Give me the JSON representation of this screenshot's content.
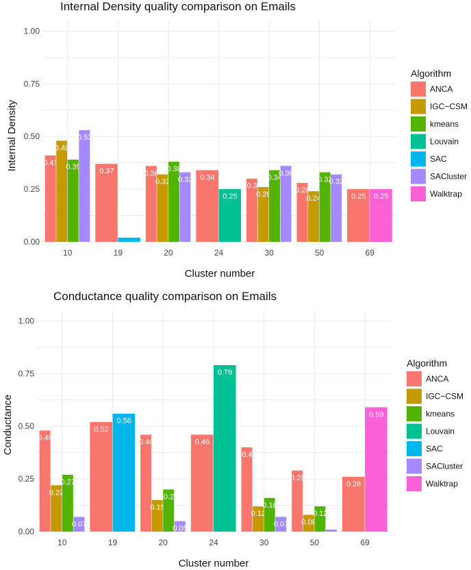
{
  "colors": {
    "ANCA": "#F8766D",
    "IGC-CSM": "#C49A00",
    "kmeans": "#53B400",
    "Louvain": "#00C094",
    "SAC": "#00B6EB",
    "SACluster": "#A58AFF",
    "Walktrap": "#FB61D7"
  },
  "chart_data": [
    {
      "type": "bar",
      "title": "Internal Density quality comparison on Emails",
      "xlabel": "Cluster number",
      "ylabel": "Internal Density",
      "ylim": [
        0,
        1.05
      ],
      "yticks": [
        "0.00",
        "0.25",
        "0.50",
        "0.75",
        "1.00"
      ],
      "ytick_values": [
        0,
        0.25,
        0.5,
        0.75,
        1.0
      ],
      "categories": [
        "10",
        "19",
        "20",
        "24",
        "30",
        "50",
        "69"
      ],
      "legend_title": "Algorithm",
      "legend": [
        "ANCA",
        "IGC−CSM",
        "kmeans",
        "Louvain",
        "SAC",
        "SACluster",
        "Walktrap"
      ],
      "legend_keys": [
        "ANCA",
        "IGC-CSM",
        "kmeans",
        "Louvain",
        "SAC",
        "SACluster",
        "Walktrap"
      ],
      "groups": [
        {
          "category": "10",
          "bars": [
            {
              "series": "ANCA",
              "value": 0.41,
              "label": "0.41"
            },
            {
              "series": "IGC-CSM",
              "value": 0.48,
              "label": "0.48"
            },
            {
              "series": "kmeans",
              "value": 0.39,
              "label": "0.39"
            },
            {
              "series": "SACluster",
              "value": 0.53,
              "label": "0.53"
            }
          ]
        },
        {
          "category": "19",
          "bars": [
            {
              "series": "ANCA",
              "value": 0.37,
              "label": "0.37"
            },
            {
              "series": "SAC",
              "value": 0.02,
              "label": "0.02"
            }
          ]
        },
        {
          "category": "20",
          "bars": [
            {
              "series": "ANCA",
              "value": 0.36,
              "label": "0.36"
            },
            {
              "series": "IGC-CSM",
              "value": 0.32,
              "label": "0.32"
            },
            {
              "series": "kmeans",
              "value": 0.38,
              "label": "0.38"
            },
            {
              "series": "SACluster",
              "value": 0.33,
              "label": "0.33"
            }
          ]
        },
        {
          "category": "24",
          "bars": [
            {
              "series": "ANCA",
              "value": 0.34,
              "label": "0.34"
            },
            {
              "series": "Louvain",
              "value": 0.25,
              "label": "0.25"
            }
          ]
        },
        {
          "category": "30",
          "bars": [
            {
              "series": "ANCA",
              "value": 0.3,
              "label": "0.3"
            },
            {
              "series": "IGC-CSM",
              "value": 0.26,
              "label": "0.26"
            },
            {
              "series": "kmeans",
              "value": 0.34,
              "label": "0.34"
            },
            {
              "series": "SACluster",
              "value": 0.36,
              "label": "0.36"
            }
          ]
        },
        {
          "category": "50",
          "bars": [
            {
              "series": "ANCA",
              "value": 0.28,
              "label": "0.28"
            },
            {
              "series": "IGC-CSM",
              "value": 0.24,
              "label": "0.24"
            },
            {
              "series": "kmeans",
              "value": 0.33,
              "label": "0.33"
            },
            {
              "series": "SACluster",
              "value": 0.32,
              "label": "0.32"
            }
          ]
        },
        {
          "category": "69",
          "bars": [
            {
              "series": "ANCA",
              "value": 0.25,
              "label": "0.25"
            },
            {
              "series": "Walktrap",
              "value": 0.25,
              "label": "0.25"
            }
          ]
        }
      ]
    },
    {
      "type": "bar",
      "title": "Conductance quality comparison on Emails",
      "xlabel": "Cluster number",
      "ylabel": "Conductance",
      "ylim": [
        0,
        1.05
      ],
      "yticks": [
        "0.00",
        "0.25",
        "0.50",
        "0.75",
        "1.00"
      ],
      "ytick_values": [
        0,
        0.25,
        0.5,
        0.75,
        1.0
      ],
      "categories": [
        "10",
        "19",
        "20",
        "24",
        "30",
        "50",
        "69"
      ],
      "legend_title": "Algorithm",
      "legend": [
        "ANCA",
        "IGC−CSM",
        "kmeans",
        "Louvain",
        "SAC",
        "SACluster",
        "Walktrap"
      ],
      "legend_keys": [
        "ANCA",
        "IGC-CSM",
        "kmeans",
        "Louvain",
        "SAC",
        "SACluster",
        "Walktrap"
      ],
      "groups": [
        {
          "category": "10",
          "bars": [
            {
              "series": "ANCA",
              "value": 0.48,
              "label": "0.48"
            },
            {
              "series": "IGC-CSM",
              "value": 0.22,
              "label": "0.22"
            },
            {
              "series": "kmeans",
              "value": 0.27,
              "label": "0.27"
            },
            {
              "series": "SACluster",
              "value": 0.07,
              "label": "0.07"
            }
          ]
        },
        {
          "category": "19",
          "bars": [
            {
              "series": "ANCA",
              "value": 0.52,
              "label": "0.52"
            },
            {
              "series": "SAC",
              "value": 0.56,
              "label": "0.56"
            }
          ]
        },
        {
          "category": "20",
          "bars": [
            {
              "series": "ANCA",
              "value": 0.46,
              "label": "0.46"
            },
            {
              "series": "IGC-CSM",
              "value": 0.15,
              "label": "0.15"
            },
            {
              "series": "kmeans",
              "value": 0.2,
              "label": "0.2"
            },
            {
              "series": "SACluster",
              "value": 0.05,
              "label": "0.05"
            }
          ]
        },
        {
          "category": "24",
          "bars": [
            {
              "series": "ANCA",
              "value": 0.46,
              "label": "0.46"
            },
            {
              "series": "Louvain",
              "value": 0.79,
              "label": "0.79"
            }
          ]
        },
        {
          "category": "30",
          "bars": [
            {
              "series": "ANCA",
              "value": 0.4,
              "label": "0.4"
            },
            {
              "series": "IGC-CSM",
              "value": 0.12,
              "label": "0.12"
            },
            {
              "series": "kmeans",
              "value": 0.16,
              "label": "0.16"
            },
            {
              "series": "SACluster",
              "value": 0.07,
              "label": "0.07"
            }
          ]
        },
        {
          "category": "50",
          "bars": [
            {
              "series": "ANCA",
              "value": 0.29,
              "label": "0.29"
            },
            {
              "series": "IGC-CSM",
              "value": 0.08,
              "label": "0.08"
            },
            {
              "series": "kmeans",
              "value": 0.12,
              "label": "0.12"
            },
            {
              "series": "SACluster",
              "value": 0.01,
              "label": "0.01"
            }
          ]
        },
        {
          "category": "69",
          "bars": [
            {
              "series": "ANCA",
              "value": 0.26,
              "label": "0.26"
            },
            {
              "series": "Walktrap",
              "value": 0.59,
              "label": "0.59"
            }
          ]
        }
      ]
    }
  ]
}
